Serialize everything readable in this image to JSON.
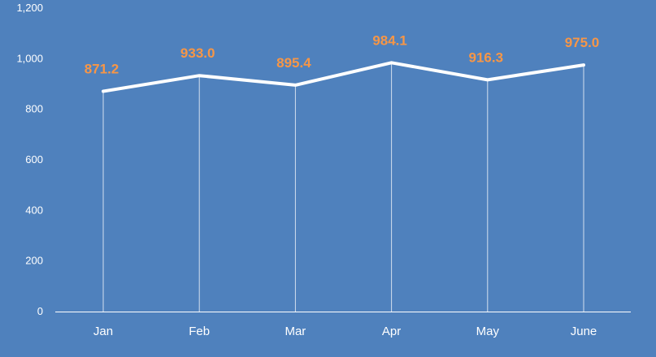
{
  "chart_data": {
    "type": "line",
    "categories": [
      "Jan",
      "Feb",
      "Mar",
      "Apr",
      "May",
      "June"
    ],
    "series": [
      {
        "values": [
          871.2,
          933.0,
          895.4,
          984.1,
          916.3,
          975.0
        ],
        "data_labels": [
          "871.2",
          "933.0",
          "895.4",
          "984.1",
          "916.3",
          "975.0"
        ]
      }
    ],
    "ylim": [
      0,
      1200
    ],
    "yticks": [
      0,
      200,
      400,
      600,
      800,
      1000,
      1200
    ],
    "ytick_labels": [
      "0",
      "200",
      "400",
      "600",
      "800",
      "1,000",
      "1,200"
    ],
    "grid": false,
    "drop_lines": true,
    "colors": {
      "background": "#4f81bd",
      "line": "#ffffff",
      "data_label": "#f79646",
      "axis": "#ffffff"
    }
  }
}
